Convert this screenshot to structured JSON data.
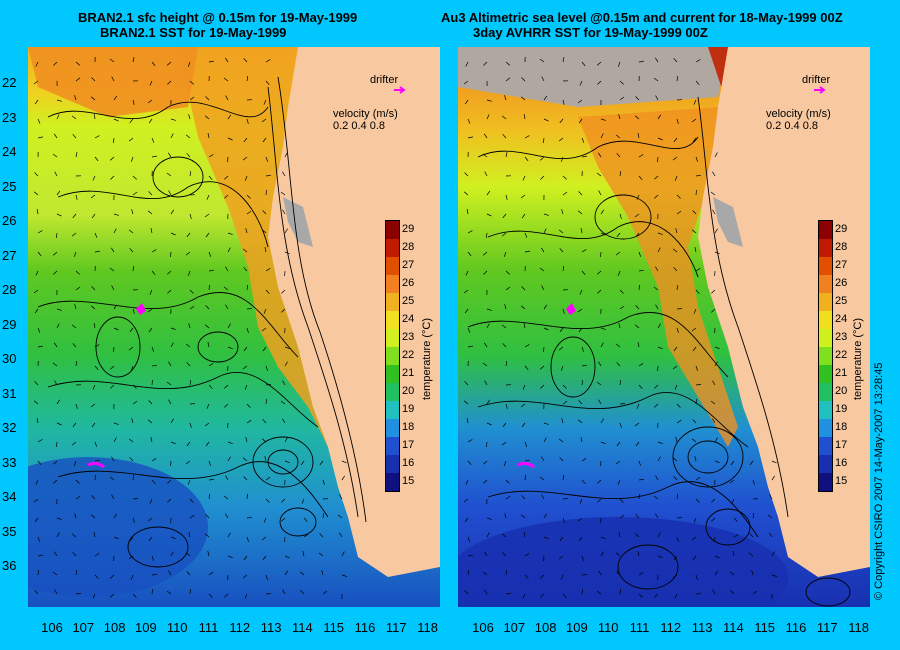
{
  "left": {
    "title_line1": "BRAN2.1 sfc height @ 0.15m for 19-May-1999",
    "title_line2": "BRAN2.1 SST for 19-May-1999"
  },
  "right": {
    "title_line1": "Au3 Altimetric sea level  @0.15m and current for 18-May-1999 00Z",
    "title_line2": "3day AVHRR SST for 19-May-1999 00Z"
  },
  "legend": {
    "drifter_label": "drifter",
    "velocity_label": "velocity (m/s)",
    "velocity_scale": "0.2  0.4  0.8",
    "drifter_color": "#FF00FF"
  },
  "colorbar": {
    "title": "temperature (°C)",
    "ticks": [
      "29",
      "28",
      "27",
      "26",
      "25",
      "24",
      "23",
      "22",
      "21",
      "20",
      "19",
      "18",
      "17",
      "16",
      "15"
    ],
    "colors": [
      "#8B0000",
      "#C01A00",
      "#E05000",
      "#F08020",
      "#F0B020",
      "#F0E020",
      "#D0F020",
      "#80E020",
      "#30C020",
      "#20C060",
      "#20C0C0",
      "#2090E0",
      "#2050D0",
      "#1830B0",
      "#101080"
    ]
  },
  "axes": {
    "y_ticks": [
      "22",
      "23",
      "24",
      "25",
      "26",
      "27",
      "28",
      "29",
      "30",
      "31",
      "32",
      "33",
      "34",
      "35",
      "36"
    ],
    "x_ticks": [
      "106",
      "107",
      "108",
      "109",
      "110",
      "111",
      "112",
      "113",
      "114",
      "115",
      "116",
      "117",
      "118"
    ]
  },
  "copyright": "© Copyright CSIRO 2007    14-May-2007 13:28:45",
  "colors": {
    "background": "#00C8FF",
    "land": "#F8C8A0",
    "cloud": "#B0A8A0"
  }
}
